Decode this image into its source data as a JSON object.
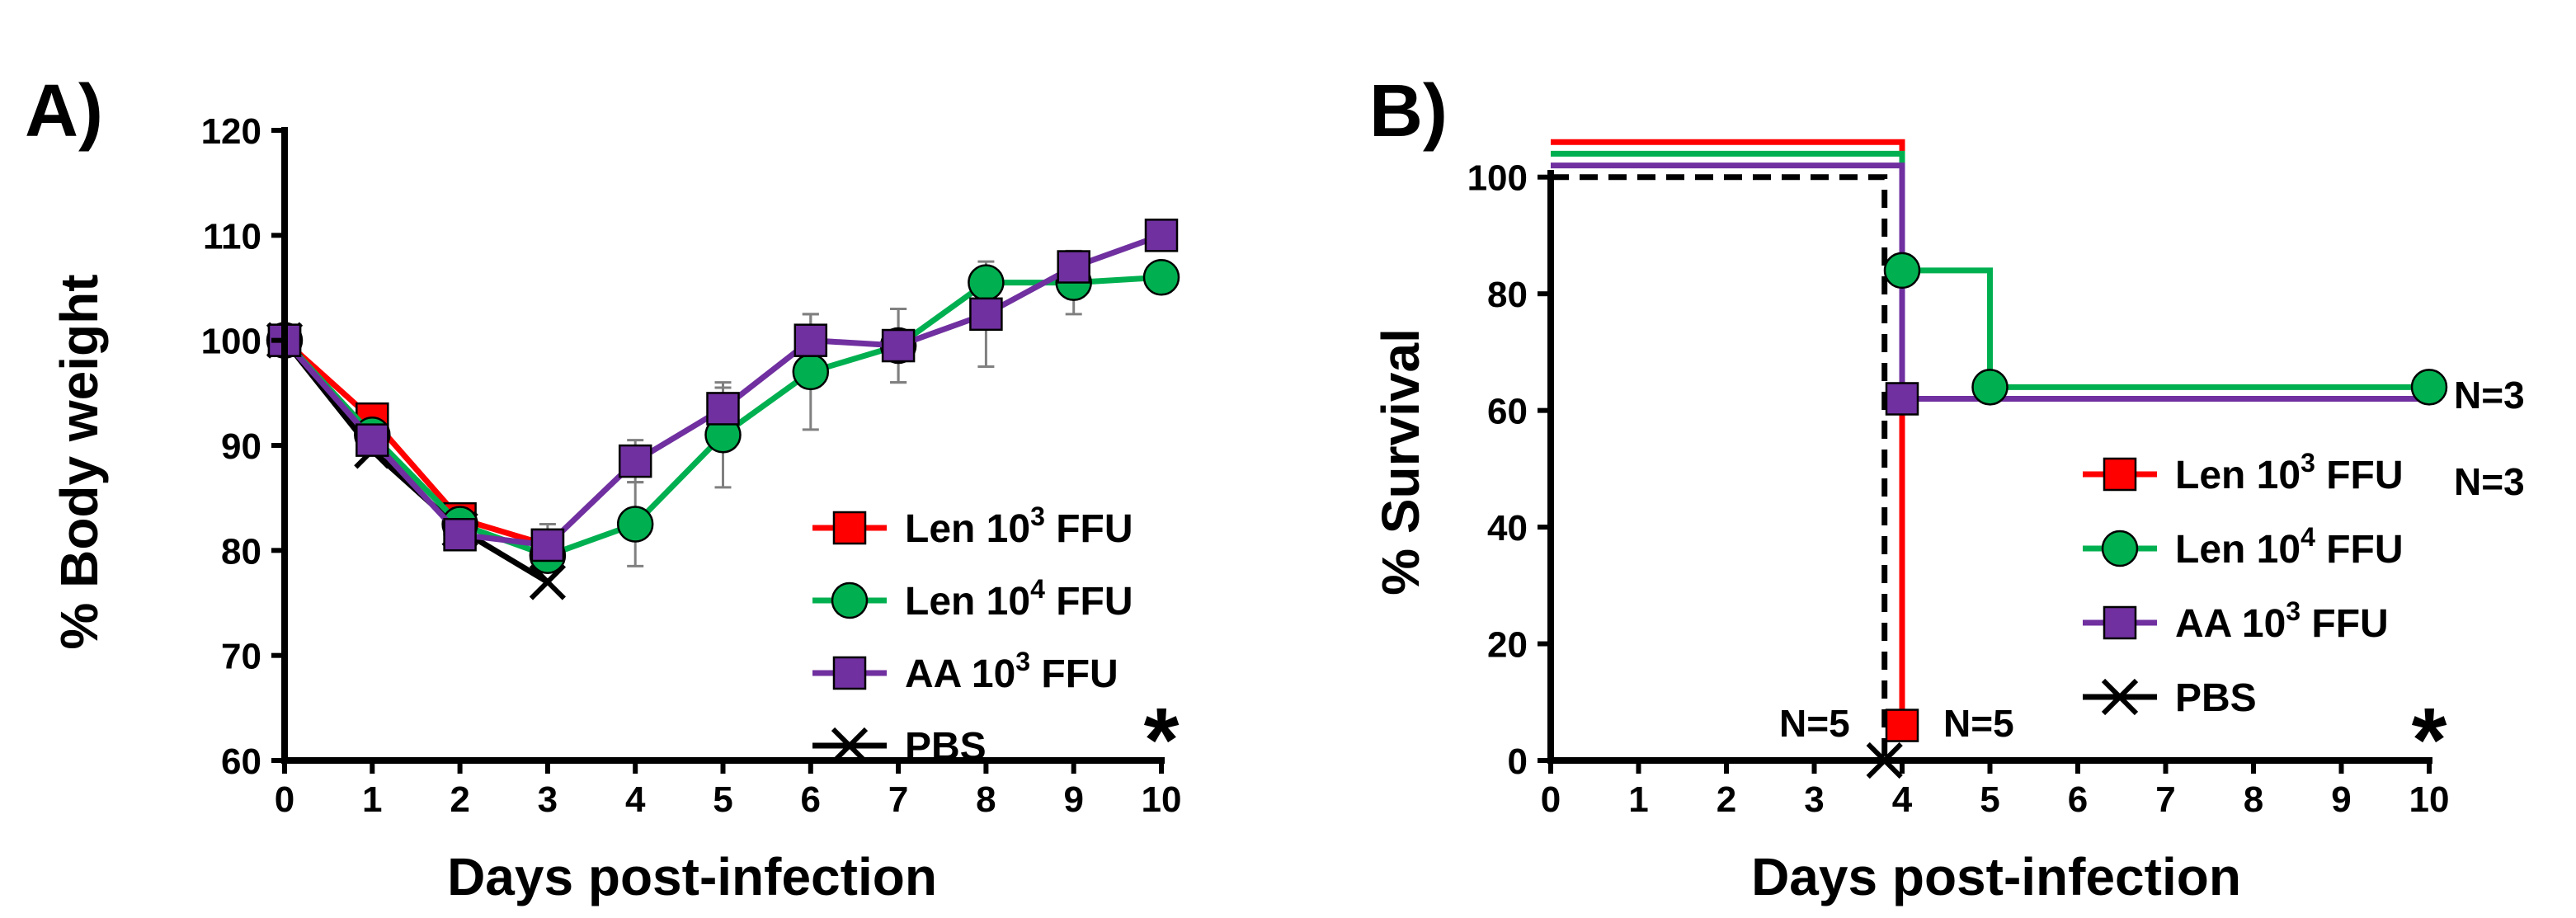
{
  "colors": {
    "len3": "#ff0000",
    "len4": "#00b050",
    "aa3": "#7030a0",
    "pbs": "#000000",
    "errorbar": "#808080"
  },
  "legend_sup": {
    "len3": "3",
    "len4": "4",
    "aa3": "3"
  },
  "chart_data": [
    {
      "panel": "A)",
      "type": "line",
      "title": "",
      "xlabel": "Days post-infection",
      "ylabel": "% Body weight",
      "xlim": [
        0,
        10
      ],
      "ylim": [
        60,
        120
      ],
      "xticks": [
        "0",
        "1",
        "2",
        "3",
        "4",
        "5",
        "6",
        "7",
        "8",
        "9",
        "10"
      ],
      "yticks": [
        "60",
        "70",
        "80",
        "90",
        "100",
        "110",
        "120"
      ],
      "significance": "*",
      "series": [
        {
          "key": "len3",
          "name": "Len 10³ FFU",
          "label_main": "Len 10",
          "label_tail": " FFU",
          "marker": "square",
          "x": [
            0,
            1,
            2,
            3
          ],
          "y": [
            100,
            92.5,
            83,
            80.5
          ]
        },
        {
          "key": "len4",
          "name": "Len 10⁴ FFU",
          "label_main": "Len 10",
          "label_tail": " FFU",
          "marker": "circle",
          "x": [
            0,
            1,
            2,
            3,
            4,
            5,
            6,
            7,
            8,
            9,
            10
          ],
          "y": [
            100,
            91,
            82.5,
            79.5,
            82.5,
            91,
            97,
            99.5,
            105.5,
            105.5,
            106
          ],
          "err": [
            0,
            0,
            0,
            0,
            4,
            5,
            5.5,
            3.5,
            0,
            3,
            0
          ]
        },
        {
          "key": "aa3",
          "name": "AA 10³ FFU",
          "label_main": "AA 10",
          "label_tail": " FFU",
          "marker": "square",
          "x": [
            0,
            1,
            2,
            3,
            4,
            5,
            6,
            7,
            8,
            9,
            10
          ],
          "y": [
            100,
            90.5,
            81.5,
            80.5,
            88.5,
            93.5,
            100,
            99.5,
            102.5,
            107,
            110
          ],
          "err": [
            0,
            0,
            0,
            2,
            2,
            2,
            2.5,
            3.5,
            5,
            0,
            0
          ]
        },
        {
          "key": "pbs",
          "name": "PBS",
          "label_main": "PBS",
          "label_tail": "",
          "marker": "x",
          "x": [
            0,
            1,
            2,
            3
          ],
          "y": [
            100,
            89.5,
            82,
            77
          ]
        }
      ]
    },
    {
      "panel": "B)",
      "type": "line",
      "title": "",
      "xlabel": "Days post-infection",
      "ylabel": "% Survival",
      "xlim": [
        0,
        10
      ],
      "ylim": [
        0,
        110
      ],
      "xticks": [
        "0",
        "1",
        "2",
        "3",
        "4",
        "5",
        "6",
        "7",
        "8",
        "9",
        "10"
      ],
      "yticks": [
        "0",
        "20",
        "40",
        "60",
        "80",
        "100"
      ],
      "significance": "*",
      "annotations": {
        "n_pbs": "N=5",
        "n_len3": "N=5",
        "n_len4": "N=3",
        "n_aa3": "N=3"
      },
      "series": [
        {
          "key": "len3",
          "name": "Len 10³ FFU",
          "label_main": "Len 10",
          "label_tail": " FFU",
          "marker": "square",
          "steps": [
            [
              0,
              106
            ],
            [
              4,
              106
            ],
            [
              4,
              6
            ]
          ],
          "markers": [
            [
              4,
              6
            ]
          ]
        },
        {
          "key": "len4",
          "name": "Len 10⁴ FFU",
          "label_main": "Len 10",
          "label_tail": " FFU",
          "marker": "circle",
          "steps": [
            [
              0,
              104
            ],
            [
              4,
              104
            ],
            [
              4,
              84
            ],
            [
              5,
              84
            ],
            [
              5,
              64
            ],
            [
              10,
              64
            ]
          ],
          "markers": [
            [
              4,
              84
            ],
            [
              5,
              64
            ],
            [
              10,
              64
            ]
          ]
        },
        {
          "key": "aa3",
          "name": "AA 10³ FFU",
          "label_main": "AA 10",
          "label_tail": " FFU",
          "marker": "square",
          "steps": [
            [
              0,
              102
            ],
            [
              4,
              102
            ],
            [
              4,
              62
            ],
            [
              10,
              62
            ]
          ],
          "markers": [
            [
              4,
              62
            ]
          ]
        },
        {
          "key": "pbs",
          "name": "PBS",
          "label_main": "PBS",
          "label_tail": "",
          "marker": "x",
          "steps": [
            [
              0,
              100
            ],
            [
              3.8,
              100
            ],
            [
              3.8,
              0
            ]
          ],
          "markers": [
            [
              3.8,
              0
            ]
          ]
        }
      ]
    }
  ]
}
